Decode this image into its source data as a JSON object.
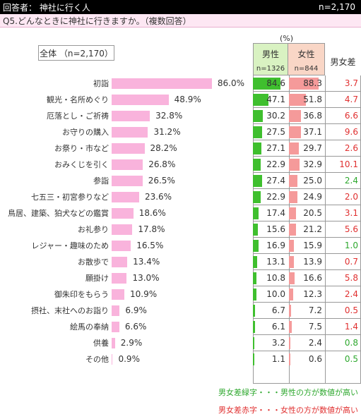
{
  "header": {
    "respondent": "回答者： 神社に行く人",
    "n": "n=2,170"
  },
  "question": "Q5.どんなときに神社に行きますか。（複数回答）",
  "total_label": "全体 （n=2,170）",
  "unit_label": "(%)",
  "columns": {
    "male": {
      "label": "男性",
      "n": "n=1326"
    },
    "female": {
      "label": "女性",
      "n": "n=844"
    },
    "diff": {
      "label": "男女差"
    }
  },
  "colors": {
    "total_bar": "#f9b3dc",
    "male_bar": "#3fbf2e",
    "female_bar": "#f59a9a",
    "diff_green": "#2ea82e",
    "diff_red": "#e03030"
  },
  "chart_data": {
    "type": "bar",
    "xlim": [
      0,
      100
    ],
    "categories": [
      "初詣",
      "観光・名所めぐり",
      "厄落とし・ご祈祷",
      "お守りの購入",
      "お祭り・市など",
      "おみくじを引く",
      "参詣",
      "七五三・初宮参りなど",
      "鳥居、建築、狛犬などの鑑賞",
      "お礼参り",
      "レジャー・趣味のため",
      "お散歩で",
      "願掛け",
      "御朱印をもらう",
      "摂社、末社へのお詣り",
      "絵馬の奉納",
      "供養",
      "その他"
    ],
    "series": [
      {
        "name": "全体",
        "values": [
          86.0,
          48.9,
          32.8,
          31.2,
          28.2,
          26.8,
          26.5,
          23.6,
          18.6,
          17.8,
          16.5,
          13.4,
          13.0,
          10.9,
          6.9,
          6.6,
          2.9,
          0.9
        ],
        "labels": [
          "86.0%",
          "48.9%",
          "32.8%",
          "31.2%",
          "28.2%",
          "26.8%",
          "26.5%",
          "23.6%",
          "18.6%",
          "17.8%",
          "16.5%",
          "13.4%",
          "13.0%",
          "10.9%",
          "6.9%",
          "6.6%",
          "2.9%",
          "0.9%"
        ]
      },
      {
        "name": "男性",
        "values": [
          84.6,
          47.1,
          30.2,
          27.5,
          27.1,
          22.9,
          27.4,
          22.9,
          17.4,
          15.6,
          16.9,
          13.1,
          10.8,
          10.0,
          6.7,
          6.1,
          3.2,
          1.1
        ],
        "labels": [
          "84.6",
          "47.1",
          "30.2",
          "27.5",
          "27.1",
          "22.9",
          "27.4",
          "22.9",
          "17.4",
          "15.6",
          "16.9",
          "13.1",
          "10.8",
          "10.0",
          "6.7",
          "6.1",
          "3.2",
          "1.1"
        ]
      },
      {
        "name": "女性",
        "values": [
          88.3,
          51.8,
          36.8,
          37.1,
          29.7,
          32.9,
          25.0,
          24.9,
          20.5,
          21.2,
          15.9,
          13.9,
          16.6,
          12.3,
          7.2,
          7.5,
          2.4,
          0.6
        ],
        "labels": [
          "88.3",
          "51.8",
          "36.8",
          "37.1",
          "29.7",
          "32.9",
          "25.0",
          "24.9",
          "20.5",
          "21.2",
          "15.9",
          "13.9",
          "16.6",
          "12.3",
          "7.2",
          "7.5",
          "2.4",
          "0.6"
        ]
      },
      {
        "name": "男女差",
        "values": [
          3.7,
          4.7,
          6.6,
          9.6,
          2.6,
          10.1,
          2.4,
          2.0,
          3.1,
          5.6,
          1.0,
          0.7,
          5.8,
          2.4,
          0.5,
          1.4,
          0.8,
          0.5
        ],
        "labels": [
          "3.7",
          "4.7",
          "6.6",
          "9.6",
          "2.6",
          "10.1",
          "2.4",
          "2.0",
          "3.1",
          "5.6",
          "1.0",
          "0.7",
          "5.8",
          "2.4",
          "0.5",
          "1.4",
          "0.8",
          "0.5"
        ],
        "color_keys": [
          "red",
          "red",
          "red",
          "red",
          "red",
          "red",
          "green",
          "red",
          "red",
          "red",
          "green",
          "red",
          "red",
          "red",
          "red",
          "red",
          "green",
          "green"
        ]
      }
    ]
  },
  "notes": {
    "green": "男女差緑字・・・男性の方が数値が高い",
    "red": "男女差赤字・・・女性の方が数値が高い"
  }
}
